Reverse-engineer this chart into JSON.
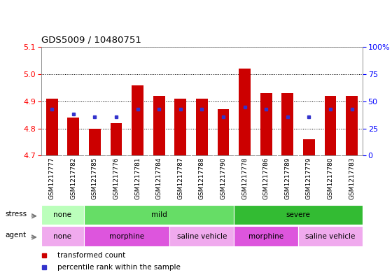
{
  "title": "GDS5009 / 10480751",
  "samples": [
    "GSM1217777",
    "GSM1217782",
    "GSM1217785",
    "GSM1217776",
    "GSM1217781",
    "GSM1217784",
    "GSM1217787",
    "GSM1217788",
    "GSM1217790",
    "GSM1217778",
    "GSM1217786",
    "GSM1217789",
    "GSM1217779",
    "GSM1217780",
    "GSM1217783"
  ],
  "transformed_count": [
    4.91,
    4.84,
    4.8,
    4.82,
    4.96,
    4.92,
    4.91,
    4.91,
    4.87,
    5.02,
    4.93,
    4.93,
    4.76,
    4.92,
    4.92
  ],
  "percentile_rank": [
    43,
    38,
    36,
    36,
    43,
    43,
    43,
    43,
    36,
    45,
    43,
    36,
    36,
    43,
    43
  ],
  "ymin": 4.7,
  "ymax": 5.1,
  "yticks": [
    4.7,
    4.8,
    4.9,
    5.0,
    5.1
  ],
  "bar_color": "#cc0000",
  "dot_color": "#3333cc",
  "xtick_bg": "#d8d8d8",
  "stress_groups": [
    {
      "label": "none",
      "start": 0,
      "end": 2,
      "color": "#bbffbb"
    },
    {
      "label": "mild",
      "start": 2,
      "end": 9,
      "color": "#66dd66"
    },
    {
      "label": "severe",
      "start": 9,
      "end": 15,
      "color": "#33bb33"
    }
  ],
  "agent_groups": [
    {
      "label": "none",
      "start": 0,
      "end": 2,
      "color": "#f0aaee"
    },
    {
      "label": "morphine",
      "start": 2,
      "end": 6,
      "color": "#dd55dd"
    },
    {
      "label": "saline vehicle",
      "start": 6,
      "end": 9,
      "color": "#f0aaee"
    },
    {
      "label": "morphine",
      "start": 9,
      "end": 12,
      "color": "#dd55dd"
    },
    {
      "label": "saline vehicle",
      "start": 12,
      "end": 15,
      "color": "#f0aaee"
    }
  ],
  "right_ytick_percents": [
    0,
    25,
    50,
    75,
    100
  ],
  "right_yticklabels": [
    "0",
    "25",
    "50",
    "75",
    "100%"
  ]
}
